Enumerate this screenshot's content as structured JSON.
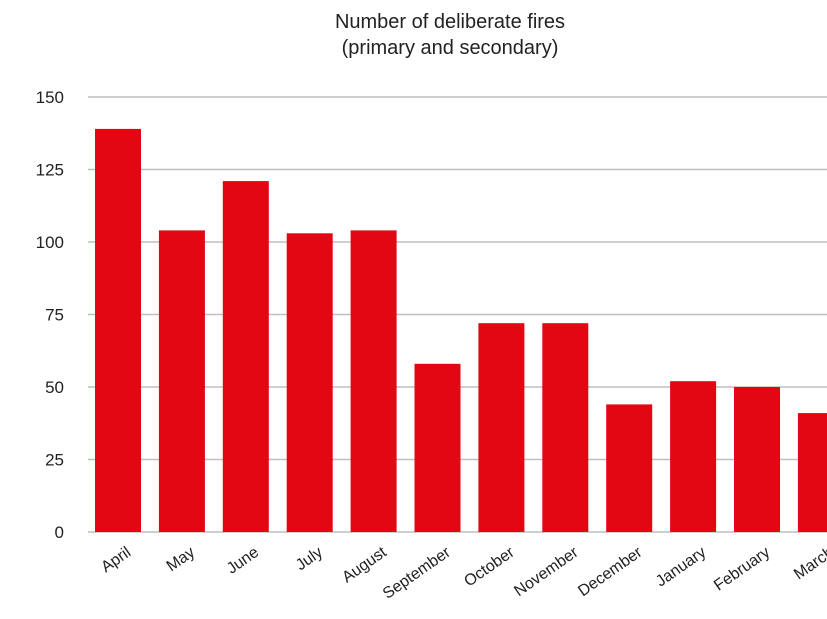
{
  "chart_data": {
    "type": "bar",
    "title_lines": [
      "Number of deliberate fires",
      "(primary and secondary)"
    ],
    "categories": [
      "April",
      "May",
      "June",
      "July",
      "August",
      "September",
      "October",
      "November",
      "December",
      "January",
      "February",
      "March"
    ],
    "values": [
      139,
      104,
      121,
      103,
      104,
      58,
      72,
      72,
      44,
      52,
      50,
      41
    ],
    "ylim": [
      0,
      150
    ],
    "yticks": [
      0,
      25,
      50,
      75,
      100,
      125,
      150
    ],
    "grid": true,
    "colors": {
      "bar": "#e30613",
      "grid": "#bfbfbf",
      "text": "#222222"
    }
  }
}
